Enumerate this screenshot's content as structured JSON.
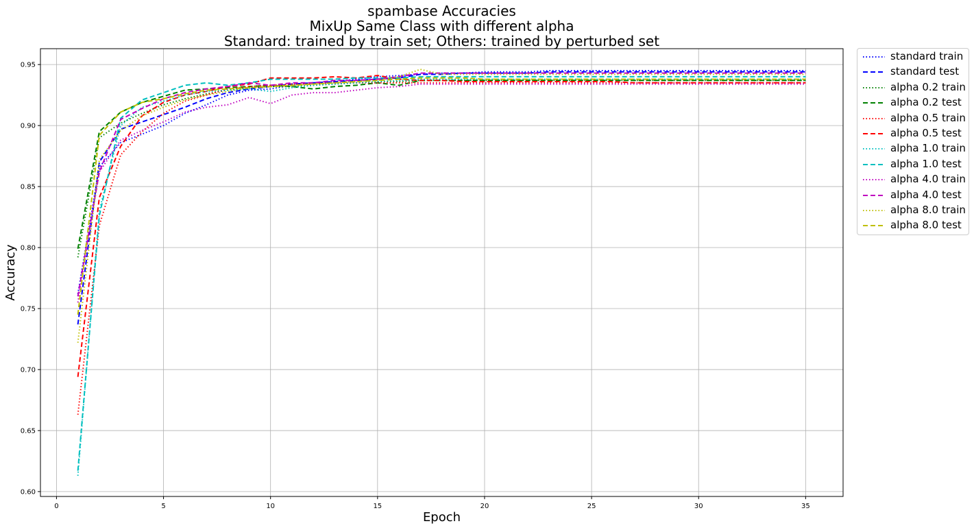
{
  "chart_data": {
    "type": "line",
    "title": [
      "spambase Accuracies",
      "MixUp Same Class with different alpha",
      "Standard: trained by train set; Others: trained by perturbed set"
    ],
    "xlabel": "Epoch",
    "ylabel": "Accuracy",
    "xlim": [
      -0.75,
      36.75
    ],
    "ylim": [
      0.596,
      0.963
    ],
    "xticks": [
      "0",
      "5",
      "10",
      "15",
      "20",
      "25",
      "30",
      "35"
    ],
    "yticks": [
      "0.60",
      "0.65",
      "0.70",
      "0.75",
      "0.80",
      "0.85",
      "0.90",
      "0.95"
    ],
    "grid": true,
    "legend_position": "outside top-right",
    "x": [
      1,
      2,
      3,
      4,
      5,
      6,
      7,
      8,
      9,
      10,
      11,
      12,
      13,
      14,
      15,
      16,
      17,
      18,
      19,
      20,
      21,
      22,
      23,
      24,
      25,
      26,
      27,
      28,
      29,
      30,
      31,
      32,
      33,
      34,
      35
    ],
    "series": [
      {
        "name": "standard train",
        "color": "#0000ff",
        "style": "dotted",
        "values": [
          0.762,
          0.866,
          0.886,
          0.893,
          0.9,
          0.91,
          0.917,
          0.925,
          0.929,
          0.93,
          0.933,
          0.935,
          0.936,
          0.938,
          0.94,
          0.941,
          0.942,
          0.943,
          0.943,
          0.944,
          0.944,
          0.944,
          0.945,
          0.945,
          0.945,
          0.945,
          0.945,
          0.945,
          0.945,
          0.945,
          0.945,
          0.945,
          0.945,
          0.945,
          0.945
        ]
      },
      {
        "name": "standard test",
        "color": "#0000ff",
        "style": "dashed",
        "values": [
          0.737,
          0.87,
          0.897,
          0.903,
          0.909,
          0.915,
          0.922,
          0.927,
          0.93,
          0.932,
          0.934,
          0.935,
          0.936,
          0.937,
          0.938,
          0.939,
          0.942,
          0.942,
          0.943,
          0.943,
          0.943,
          0.943,
          0.944,
          0.944,
          0.944,
          0.944,
          0.944,
          0.944,
          0.944,
          0.944,
          0.944,
          0.944,
          0.944,
          0.944,
          0.944
        ]
      },
      {
        "name": "alpha 0.2 train",
        "color": "#008000",
        "style": "dotted",
        "values": [
          0.792,
          0.89,
          0.902,
          0.91,
          0.917,
          0.922,
          0.926,
          0.929,
          0.931,
          0.932,
          0.932,
          0.933,
          0.934,
          0.935,
          0.936,
          0.936,
          0.937,
          0.937,
          0.937,
          0.937,
          0.937,
          0.937,
          0.937,
          0.937,
          0.937,
          0.937,
          0.937,
          0.937,
          0.937,
          0.937,
          0.937,
          0.937,
          0.937,
          0.937,
          0.937
        ]
      },
      {
        "name": "alpha 0.2 test",
        "color": "#008000",
        "style": "dashed",
        "values": [
          0.799,
          0.895,
          0.911,
          0.919,
          0.924,
          0.929,
          0.93,
          0.931,
          0.932,
          0.933,
          0.932,
          0.93,
          0.932,
          0.933,
          0.935,
          0.933,
          0.937,
          0.937,
          0.937,
          0.937,
          0.937,
          0.937,
          0.937,
          0.937,
          0.937,
          0.937,
          0.937,
          0.937,
          0.937,
          0.937,
          0.937,
          0.937,
          0.937,
          0.937,
          0.937
        ]
      },
      {
        "name": "alpha 0.5 train",
        "color": "#ff0000",
        "style": "dotted",
        "values": [
          0.663,
          0.818,
          0.876,
          0.895,
          0.91,
          0.92,
          0.925,
          0.93,
          0.932,
          0.933,
          0.934,
          0.934,
          0.935,
          0.935,
          0.935,
          0.935,
          0.935,
          0.935,
          0.935,
          0.935,
          0.935,
          0.935,
          0.935,
          0.935,
          0.935,
          0.935,
          0.935,
          0.935,
          0.935,
          0.935,
          0.935,
          0.935,
          0.935,
          0.935,
          0.935
        ]
      },
      {
        "name": "alpha 0.5 test",
        "color": "#ff0000",
        "style": "dashed",
        "values": [
          0.694,
          0.841,
          0.883,
          0.908,
          0.919,
          0.925,
          0.928,
          0.932,
          0.934,
          0.939,
          0.939,
          0.939,
          0.94,
          0.939,
          0.941,
          0.938,
          0.937,
          0.937,
          0.936,
          0.936,
          0.936,
          0.936,
          0.936,
          0.936,
          0.936,
          0.936,
          0.935,
          0.935,
          0.935,
          0.935,
          0.935,
          0.935,
          0.935,
          0.935,
          0.935
        ]
      },
      {
        "name": "alpha 1.0 train",
        "color": "#00bfbf",
        "style": "dotted",
        "values": [
          0.613,
          0.83,
          0.9,
          0.915,
          0.92,
          0.925,
          0.928,
          0.929,
          0.93,
          0.928,
          0.931,
          0.933,
          0.934,
          0.935,
          0.936,
          0.937,
          0.938,
          0.938,
          0.938,
          0.938,
          0.938,
          0.938,
          0.938,
          0.938,
          0.938,
          0.938,
          0.938,
          0.938,
          0.938,
          0.938,
          0.938,
          0.938,
          0.938,
          0.938,
          0.938
        ]
      },
      {
        "name": "alpha 1.0 test",
        "color": "#00bfbf",
        "style": "dashed",
        "values": [
          0.617,
          0.826,
          0.906,
          0.921,
          0.927,
          0.933,
          0.935,
          0.933,
          0.935,
          0.938,
          0.938,
          0.938,
          0.938,
          0.939,
          0.939,
          0.939,
          0.94,
          0.94,
          0.94,
          0.94,
          0.94,
          0.94,
          0.94,
          0.94,
          0.94,
          0.94,
          0.94,
          0.94,
          0.94,
          0.94,
          0.94,
          0.94,
          0.94,
          0.94,
          0.94
        ]
      },
      {
        "name": "alpha 4.0 train",
        "color": "#bf00bf",
        "style": "dotted",
        "values": [
          0.755,
          0.862,
          0.888,
          0.896,
          0.903,
          0.911,
          0.915,
          0.917,
          0.923,
          0.918,
          0.925,
          0.927,
          0.927,
          0.929,
          0.931,
          0.932,
          0.934,
          0.934,
          0.934,
          0.934,
          0.934,
          0.934,
          0.934,
          0.934,
          0.934,
          0.934,
          0.934,
          0.934,
          0.934,
          0.934,
          0.934,
          0.934,
          0.934,
          0.934,
          0.934
        ]
      },
      {
        "name": "alpha 4.0 test",
        "color": "#bf00bf",
        "style": "dashed",
        "values": [
          0.76,
          0.862,
          0.905,
          0.914,
          0.922,
          0.927,
          0.93,
          0.932,
          0.935,
          0.933,
          0.935,
          0.935,
          0.937,
          0.937,
          0.938,
          0.94,
          0.943,
          0.943,
          0.943,
          0.943,
          0.943,
          0.943,
          0.943,
          0.943,
          0.943,
          0.943,
          0.943,
          0.943,
          0.943,
          0.943,
          0.943,
          0.943,
          0.943,
          0.943,
          0.943
        ]
      },
      {
        "name": "alpha 8.0 train",
        "color": "#bfbf00",
        "style": "dotted",
        "values": [
          0.722,
          0.872,
          0.896,
          0.908,
          0.915,
          0.921,
          0.925,
          0.928,
          0.931,
          0.932,
          0.933,
          0.934,
          0.935,
          0.936,
          0.937,
          0.94,
          0.946,
          0.942,
          0.942,
          0.942,
          0.942,
          0.942,
          0.942,
          0.942,
          0.942,
          0.942,
          0.942,
          0.942,
          0.942,
          0.942,
          0.942,
          0.942,
          0.942,
          0.942,
          0.942
        ]
      },
      {
        "name": "alpha 8.0 test",
        "color": "#bfbf00",
        "style": "dashed",
        "values": [
          0.745,
          0.892,
          0.911,
          0.919,
          0.922,
          0.926,
          0.929,
          0.93,
          0.931,
          0.932,
          0.933,
          0.934,
          0.935,
          0.936,
          0.937,
          0.938,
          0.939,
          0.939,
          0.939,
          0.938,
          0.938,
          0.938,
          0.938,
          0.938,
          0.938,
          0.938,
          0.938,
          0.938,
          0.938,
          0.938,
          0.938,
          0.938,
          0.938,
          0.938,
          0.938
        ]
      }
    ]
  }
}
